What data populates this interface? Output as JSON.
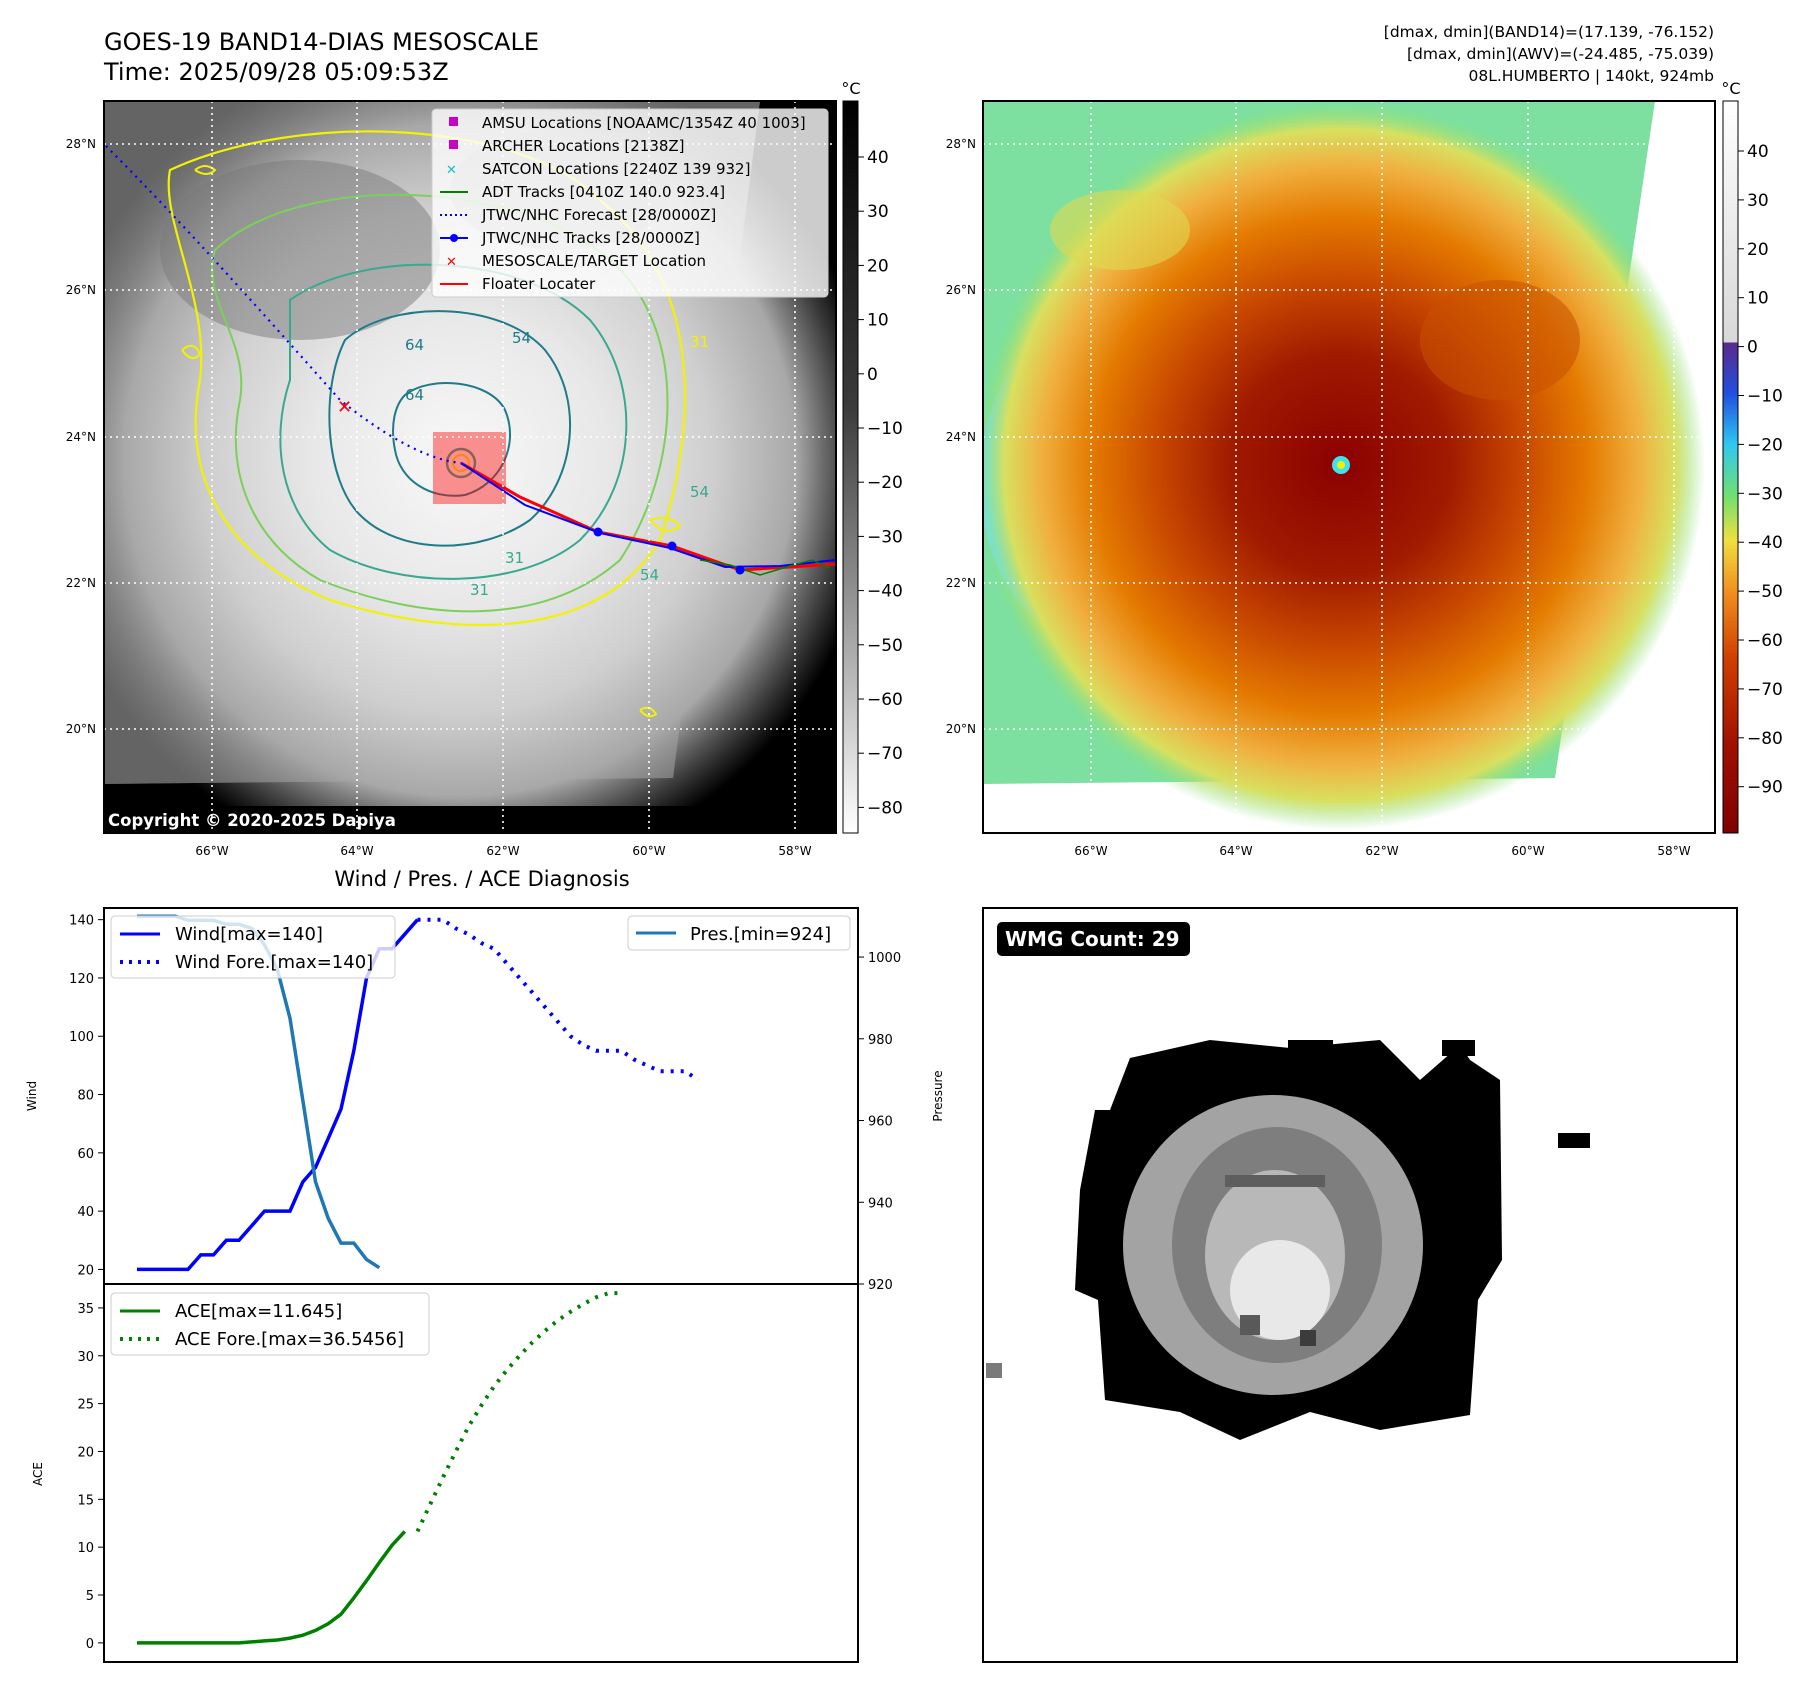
{
  "header": {
    "title_line1": "GOES-19 BAND14-DIAS MESOSCALE",
    "title_line2": "Time: 2025/09/28 05:09:53Z",
    "right_line1": "[dmax, dmin](BAND14)=(17.139, -76.152)",
    "right_line2": "[dmax, dmin](AWV)=(-24.485, -75.039)",
    "right_line3": "08L.HUMBERTO | 140kt, 924mb"
  },
  "map": {
    "lat_labels": [
      "28°N",
      "26°N",
      "24°N",
      "22°N",
      "20°N"
    ],
    "lon_labels": [
      "66°W",
      "64°W",
      "62°W",
      "60°W",
      "58°W"
    ],
    "unit": "°C",
    "copyright": "Copyright © 2020-2025 Dapiya",
    "gray_ticks": [
      "40",
      "30",
      "20",
      "10",
      "0",
      "−10",
      "−20",
      "−30",
      "−40",
      "−50",
      "−60",
      "−70",
      "−80"
    ],
    "color_ticks": [
      "40",
      "30",
      "20",
      "10",
      "0",
      "−10",
      "−20",
      "−30",
      "−40",
      "−50",
      "−60",
      "−70",
      "−80",
      "−90"
    ],
    "contour_labels": [
      "64",
      "54",
      "64",
      "54",
      "31",
      "54",
      "31",
      "31"
    ],
    "legend": [
      {
        "label": "AMSU Locations [NOAAMC/1354Z 40 1003]",
        "color": "#c800c8",
        "marker": "square"
      },
      {
        "label": "ARCHER Locations [2138Z]",
        "color": "#c800c8",
        "marker": "square"
      },
      {
        "label": "SATCON Locations [2240Z 139 932]",
        "color": "#17becf",
        "marker": "x"
      },
      {
        "label": "ADT Tracks [0410Z 140.0 923.4]",
        "color": "#008000",
        "marker": "line"
      },
      {
        "label": "JTWC/NHC Forecast [28/0000Z]",
        "color": "#0000ff",
        "marker": "dotted"
      },
      {
        "label": "JTWC/NHC Tracks [28/0000Z]",
        "color": "#0000ff",
        "marker": "line-dot"
      },
      {
        "label": "MESOSCALE/TARGET Location",
        "color": "#ff0000",
        "marker": "x"
      },
      {
        "label": "Floater Locater",
        "color": "#ff0000",
        "marker": "line"
      }
    ]
  },
  "chart_data": [
    {
      "type": "line",
      "title": "Wind / Pres. / ACE Diagnosis",
      "ylabel": "Wind",
      "ylim": [
        15,
        144
      ],
      "yticks": [
        20,
        40,
        60,
        80,
        100,
        120,
        140
      ],
      "y2label": "Pressure",
      "y2lim": [
        920,
        1012
      ],
      "y2ticks": [
        920,
        940,
        960,
        980,
        1000
      ],
      "x_steps": 56,
      "series": [
        {
          "name": "Wind[max=140]",
          "color": "#0000ff",
          "style": "solid",
          "values": [
            20,
            20,
            20,
            20,
            20,
            25,
            25,
            30,
            30,
            35,
            40,
            40,
            40,
            50,
            55,
            65,
            75,
            95,
            120,
            130,
            130,
            135,
            140
          ]
        },
        {
          "name": "Wind Fore.[max=140]",
          "color": "#0000ff",
          "style": "dotted",
          "start": 22,
          "values": [
            140,
            140,
            140,
            137,
            135,
            132,
            130,
            125,
            120,
            115,
            110,
            105,
            100,
            97,
            95,
            95,
            95,
            92,
            90,
            88,
            88,
            88,
            85
          ]
        },
        {
          "name": "Pres.[min=924]",
          "color": "#1f77b4",
          "style": "solid",
          "axis": "right",
          "values": [
            1010,
            1010,
            1010,
            1010,
            1009,
            1009,
            1009,
            1008,
            1008,
            1007,
            1003,
            997,
            985,
            965,
            945,
            936,
            930,
            930,
            926,
            924
          ]
        }
      ]
    },
    {
      "type": "line",
      "ylabel": "ACE",
      "ylim": [
        -2,
        37.5
      ],
      "yticks": [
        0,
        5,
        10,
        15,
        20,
        25,
        30,
        35
      ],
      "x_steps": 56,
      "series": [
        {
          "name": "ACE[max=11.645]",
          "color": "#008000",
          "style": "solid",
          "values": [
            0,
            0,
            0,
            0,
            0,
            0,
            0,
            0,
            0,
            0.1,
            0.2,
            0.3,
            0.5,
            0.8,
            1.3,
            2.0,
            3.0,
            4.7,
            6.5,
            8.4,
            10.2,
            11.645
          ]
        },
        {
          "name": "ACE Fore.[max=36.5456]",
          "color": "#008000",
          "style": "dotted",
          "start": 22,
          "values": [
            11.645,
            14.5,
            17.3,
            20.0,
            22.6,
            24.8,
            26.8,
            28.5,
            30.0,
            31.4,
            32.6,
            33.7,
            34.6,
            35.4,
            36.1,
            36.5456,
            36.5456
          ]
        }
      ]
    }
  ],
  "wmg": {
    "label": "WMG Count: 29"
  }
}
